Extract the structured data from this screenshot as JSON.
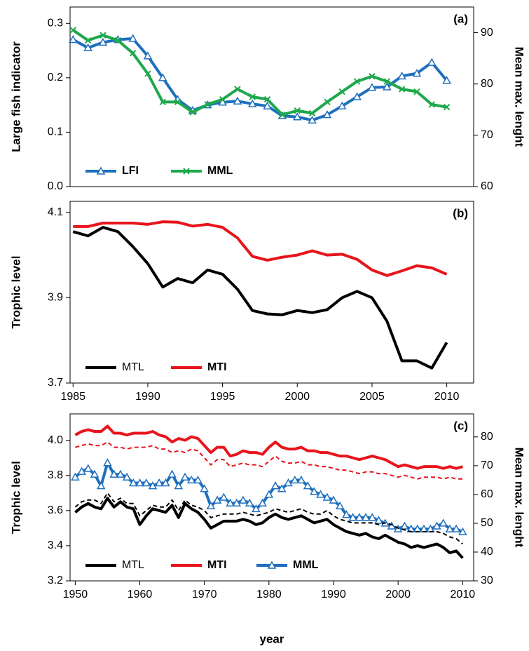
{
  "chart_data": [
    {
      "type": "line",
      "annotation": "(a)",
      "y_label": "Large fish indicator",
      "y2_label": "Mean max. lenght",
      "x": [
        1985,
        1986,
        1987,
        1988,
        1989,
        1990,
        1991,
        1992,
        1993,
        1994,
        1995,
        1996,
        1997,
        1998,
        1999,
        2000,
        2001,
        2002,
        2003,
        2004,
        2005,
        2006,
        2007,
        2008,
        2009,
        2010
      ],
      "xlim": [
        1984.8,
        2011.8
      ],
      "ylim": [
        0,
        0.33
      ],
      "yticks": [
        {
          "value": 0,
          "label": "0.0"
        },
        0.1,
        0.2,
        0.3
      ],
      "y2lim": [
        60,
        95
      ],
      "y2ticks": [
        60,
        70,
        80,
        90
      ],
      "legend": "lower left",
      "series": [
        {
          "name": "LFI",
          "color": "#1f6fbf",
          "marker": "triangle",
          "values": [
            0.27,
            0.255,
            0.265,
            0.27,
            0.272,
            0.24,
            0.2,
            0.16,
            0.14,
            0.15,
            0.155,
            0.157,
            0.152,
            0.148,
            0.13,
            0.128,
            0.122,
            0.132,
            0.148,
            0.165,
            0.182,
            0.183,
            0.203,
            0.208,
            0.228,
            0.195
          ]
        },
        {
          "name": "MML",
          "color": "#1ea84c",
          "marker": "x",
          "axis": "y2",
          "values": [
            90.5,
            88.5,
            89.5,
            88.5,
            86,
            82,
            76.5,
            76.5,
            74.5,
            76,
            77,
            79,
            77.5,
            77,
            74,
            74.8,
            74.3,
            76.5,
            78.5,
            80.5,
            81.5,
            80.5,
            79,
            78.5,
            76,
            75.5
          ]
        }
      ]
    },
    {
      "type": "line",
      "annotation": "(b)",
      "y_label": "Trophic level",
      "x": [
        1985,
        1986,
        1987,
        1988,
        1989,
        1990,
        1991,
        1992,
        1993,
        1994,
        1995,
        1996,
        1997,
        1998,
        1999,
        2000,
        2001,
        2002,
        2003,
        2004,
        2005,
        2006,
        2007,
        2008,
        2009,
        2010
      ],
      "xlim": [
        1984.8,
        2011.8
      ],
      "xticks": [
        1985,
        1990,
        1995,
        2000,
        2005,
        2010
      ],
      "ylim": [
        3.7,
        4.126
      ],
      "yticks": [
        3.7,
        3.9,
        4.1
      ],
      "legend": "lower left",
      "series": [
        {
          "name": "MTL",
          "color": "#000000",
          "values": [
            4.055,
            4.045,
            4.065,
            4.055,
            4.02,
            3.98,
            3.925,
            3.945,
            3.935,
            3.965,
            3.955,
            3.92,
            3.87,
            3.862,
            3.86,
            3.87,
            3.865,
            3.872,
            3.9,
            3.915,
            3.9,
            3.845,
            3.752,
            3.752,
            3.735,
            3.795
          ]
        },
        {
          "name": "MTI",
          "color": "#e8141c",
          "values": [
            4.067,
            4.067,
            4.075,
            4.075,
            4.075,
            4.072,
            4.078,
            4.077,
            4.068,
            4.072,
            4.065,
            4.04,
            3.997,
            3.988,
            3.995,
            4.0,
            4.01,
            4.0,
            4.002,
            3.99,
            3.965,
            3.952,
            3.963,
            3.975,
            3.97,
            3.955
          ]
        }
      ]
    },
    {
      "type": "line",
      "annotation": "(c)",
      "y_label": "Trophic level",
      "y2_label": "Mean max. lenght",
      "x_label": "year",
      "x": [
        1950,
        1951,
        1952,
        1953,
        1954,
        1955,
        1956,
        1957,
        1958,
        1959,
        1960,
        1961,
        1962,
        1963,
        1964,
        1965,
        1966,
        1967,
        1968,
        1969,
        1970,
        1971,
        1972,
        1973,
        1974,
        1975,
        1976,
        1977,
        1978,
        1979,
        1980,
        1981,
        1982,
        1983,
        1984,
        1985,
        1986,
        1987,
        1988,
        1989,
        1990,
        1991,
        1992,
        1993,
        1994,
        1995,
        1996,
        1997,
        1998,
        1999,
        2000,
        2001,
        2002,
        2003,
        2004,
        2005,
        2006,
        2007,
        2008,
        2009,
        2010
      ],
      "xlim": [
        1949.2,
        2011.7
      ],
      "xticks": [
        1950,
        1960,
        1970,
        1980,
        1990,
        2000,
        2010
      ],
      "ylim": [
        3.2,
        4.15
      ],
      "yticks": [
        3.2,
        3.4,
        3.6,
        3.8,
        {
          "value": 4,
          "label": "4.0"
        }
      ],
      "y2lim": [
        30,
        88
      ],
      "y2ticks": [
        30,
        40,
        50,
        60,
        70,
        80
      ],
      "legend": "lower left",
      "series": [
        {
          "name": "MTL",
          "color": "#000000",
          "values": [
            3.59,
            3.62,
            3.64,
            3.62,
            3.61,
            3.67,
            3.62,
            3.65,
            3.62,
            3.61,
            3.52,
            3.57,
            3.61,
            3.6,
            3.59,
            3.63,
            3.56,
            3.64,
            3.61,
            3.59,
            3.55,
            3.5,
            3.52,
            3.54,
            3.54,
            3.54,
            3.55,
            3.54,
            3.52,
            3.53,
            3.56,
            3.58,
            3.56,
            3.55,
            3.56,
            3.57,
            3.55,
            3.53,
            3.54,
            3.55,
            3.52,
            3.5,
            3.48,
            3.47,
            3.46,
            3.47,
            3.45,
            3.44,
            3.46,
            3.44,
            3.42,
            3.41,
            3.39,
            3.4,
            3.39,
            3.4,
            3.41,
            3.39,
            3.36,
            3.37,
            3.33
          ]
        },
        {
          "name": "MTI",
          "color": "#e8141c",
          "values": [
            4.03,
            4.05,
            4.06,
            4.05,
            4.05,
            4.08,
            4.04,
            4.04,
            4.03,
            4.04,
            4.04,
            4.04,
            4.05,
            4.03,
            4.02,
            3.99,
            4.01,
            4.0,
            4.02,
            4.01,
            3.97,
            3.93,
            3.96,
            3.96,
            3.91,
            3.92,
            3.94,
            3.93,
            3.93,
            3.92,
            3.96,
            3.99,
            3.96,
            3.95,
            3.95,
            3.96,
            3.94,
            3.94,
            3.93,
            3.93,
            3.92,
            3.91,
            3.91,
            3.9,
            3.89,
            3.9,
            3.91,
            3.9,
            3.89,
            3.87,
            3.85,
            3.86,
            3.85,
            3.84,
            3.85,
            3.85,
            3.85,
            3.84,
            3.85,
            3.84,
            3.85
          ]
        },
        {
          "name": "MML",
          "color": "#1f6fbf",
          "marker": "triangle",
          "axis": "y2",
          "values": [
            66,
            68,
            69,
            67,
            63,
            71,
            67,
            67,
            66,
            64,
            64,
            64,
            63,
            64,
            64,
            67,
            63,
            66,
            65,
            65,
            62,
            56,
            58,
            59,
            57,
            57,
            58,
            57,
            55,
            57,
            60,
            63,
            62,
            64,
            65,
            65,
            63,
            61,
            60,
            59,
            58,
            56,
            53,
            52,
            52,
            52,
            52,
            51,
            50,
            49,
            48,
            49,
            48,
            48,
            48,
            48,
            49,
            50,
            48,
            48,
            47
          ]
        },
        {
          "color": "#000000",
          "dashed": true,
          "values": [
            3.62,
            3.65,
            3.66,
            3.66,
            3.64,
            3.7,
            3.65,
            3.67,
            3.64,
            3.64,
            3.57,
            3.6,
            3.63,
            3.62,
            3.62,
            3.66,
            3.6,
            3.66,
            3.63,
            3.62,
            3.6,
            3.56,
            3.57,
            3.58,
            3.58,
            3.58,
            3.59,
            3.58,
            3.57,
            3.58,
            3.59,
            3.61,
            3.6,
            3.59,
            3.6,
            3.61,
            3.59,
            3.58,
            3.58,
            3.6,
            3.57,
            3.55,
            3.54,
            3.53,
            3.53,
            3.53,
            3.53,
            3.52,
            3.53,
            3.52,
            3.5,
            3.49,
            3.48,
            3.48,
            3.48,
            3.48,
            3.48,
            3.47,
            3.45,
            3.44,
            3.41
          ]
        },
        {
          "color": "#e8141c",
          "dashed": true,
          "values": [
            3.96,
            3.97,
            3.98,
            3.97,
            3.97,
            3.99,
            3.96,
            3.96,
            3.95,
            3.96,
            3.96,
            3.96,
            3.97,
            3.95,
            3.95,
            3.93,
            3.94,
            3.93,
            3.95,
            3.94,
            3.9,
            3.86,
            3.89,
            3.89,
            3.85,
            3.86,
            3.87,
            3.86,
            3.86,
            3.85,
            3.88,
            3.91,
            3.88,
            3.87,
            3.87,
            3.88,
            3.86,
            3.86,
            3.85,
            3.85,
            3.84,
            3.83,
            3.83,
            3.82,
            3.81,
            3.82,
            3.82,
            3.81,
            3.81,
            3.8,
            3.79,
            3.8,
            3.79,
            3.78,
            3.79,
            3.79,
            3.79,
            3.78,
            3.79,
            3.78,
            3.78
          ]
        }
      ]
    }
  ]
}
